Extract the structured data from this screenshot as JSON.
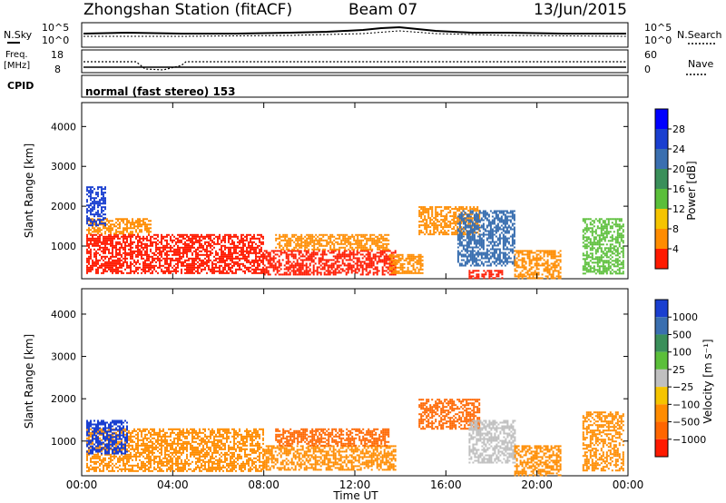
{
  "header": {
    "station": "Zhongshan Station (fitACF)",
    "beam": "Beam 07",
    "date": "13/Jun/2015"
  },
  "top_panel": {
    "left_label": "N.Sky",
    "left_ticks": [
      "10^5",
      "10^0"
    ],
    "right_ticks": [
      "10^5",
      "10^0"
    ],
    "right_label": "N.Search"
  },
  "freq_panel": {
    "left_label_1": "Freq.",
    "left_label_2": "[MHz]",
    "left_ticks": [
      "18",
      "8"
    ],
    "right_ticks": [
      "60",
      "0"
    ],
    "right_label": "Nave"
  },
  "cpid": {
    "label": "CPID",
    "value": "normal (fast stereo) 153"
  },
  "colors": {
    "red": "#ff1a00",
    "orange": "#ff8c00",
    "yellow_orange": "#f5c400",
    "green": "#5bbf3a",
    "teal": "#3a8f5a",
    "blue": "#1a3fd0",
    "gray": "#c0c0c0"
  },
  "chart_data": [
    {
      "type": "heatmap",
      "name": "power",
      "ylabel": "Slant Range [km]",
      "yticks": [
        "1000",
        "2000",
        "3000",
        "4000"
      ],
      "ylim": [
        180,
        4600
      ],
      "xlim": [
        0,
        24
      ],
      "xticks": [
        "00:00",
        "04:00",
        "08:00",
        "12:00",
        "16:00",
        "20:00",
        "00:00"
      ],
      "xlabel": "Time UT",
      "colorbar": {
        "label": "Power [dB]",
        "ticks": [
          "4",
          "8",
          "12",
          "16",
          "20",
          "24",
          "28"
        ],
        "colors": [
          "#0000ff",
          "#1a3fd0",
          "#3a6fb0",
          "#3a8f5a",
          "#5bbf3a",
          "#f5c400",
          "#ff8c00",
          "#ff1a00"
        ]
      },
      "regions": [
        {
          "t0": 0.2,
          "t1": 8.0,
          "r0": 300,
          "r1": 1300,
          "color": "#ff1a00"
        },
        {
          "t0": 0.2,
          "t1": 3.0,
          "r0": 1300,
          "r1": 1700,
          "color": "#ff8c00"
        },
        {
          "t0": 8.0,
          "t1": 13.8,
          "r0": 300,
          "r1": 900,
          "color": "#ff1a00"
        },
        {
          "t0": 8.5,
          "t1": 13.5,
          "r0": 900,
          "r1": 1300,
          "color": "#ff8c00"
        },
        {
          "t0": 13.5,
          "t1": 15.0,
          "r0": 300,
          "r1": 800,
          "color": "#ff8c00"
        },
        {
          "t0": 14.8,
          "t1": 17.5,
          "r0": 1300,
          "r1": 2000,
          "color": "#ff8c00"
        },
        {
          "t0": 16.5,
          "t1": 19.0,
          "r0": 500,
          "r1": 1900,
          "color": "#3a6fb0"
        },
        {
          "t0": 17.0,
          "t1": 18.5,
          "r0": 200,
          "r1": 400,
          "color": "#ff1a00"
        },
        {
          "t0": 19.0,
          "t1": 21.0,
          "r0": 200,
          "r1": 900,
          "color": "#ff8c00"
        },
        {
          "t0": 22.0,
          "t1": 23.8,
          "r0": 300,
          "r1": 1700,
          "color": "#5bbf3a"
        },
        {
          "t0": 0.2,
          "t1": 1.0,
          "r0": 1500,
          "r1": 2500,
          "color": "#1a3fd0"
        }
      ]
    },
    {
      "type": "heatmap",
      "name": "velocity",
      "ylabel": "Slant Range [km]",
      "yticks": [
        "1000",
        "2000",
        "3000",
        "4000"
      ],
      "ylim": [
        180,
        4600
      ],
      "xlim": [
        0,
        24
      ],
      "xticks": [
        "00:00",
        "04:00",
        "08:00",
        "12:00",
        "16:00",
        "20:00",
        "00:00"
      ],
      "xlabel": "Time UT",
      "colorbar": {
        "label": "Velocity [m s⁻¹]",
        "ticks": [
          "1000",
          "500",
          "100",
          "25",
          "−25",
          "−100",
          "−500",
          "−1000"
        ],
        "colors": [
          "#1a3fd0",
          "#3a6fb0",
          "#3a8f5a",
          "#5bbf3a",
          "#c0c0c0",
          "#f5c400",
          "#ff8c00",
          "#ff6600",
          "#ff1a00"
        ]
      },
      "regions": [
        {
          "t0": 0.2,
          "t1": 8.0,
          "r0": 300,
          "r1": 1300,
          "color": "#ff8c00"
        },
        {
          "t0": 0.2,
          "t1": 2.0,
          "r0": 700,
          "r1": 1500,
          "color": "#1a3fd0"
        },
        {
          "t0": 8.0,
          "t1": 13.8,
          "r0": 300,
          "r1": 900,
          "color": "#ff8c00"
        },
        {
          "t0": 8.5,
          "t1": 13.5,
          "r0": 900,
          "r1": 1300,
          "color": "#ff6600"
        },
        {
          "t0": 14.8,
          "t1": 17.5,
          "r0": 1300,
          "r1": 2000,
          "color": "#ff6600"
        },
        {
          "t0": 17.0,
          "t1": 19.0,
          "r0": 500,
          "r1": 1500,
          "color": "#c0c0c0"
        },
        {
          "t0": 19.0,
          "t1": 21.0,
          "r0": 200,
          "r1": 900,
          "color": "#ff8c00"
        },
        {
          "t0": 22.0,
          "t1": 23.8,
          "r0": 300,
          "r1": 1700,
          "color": "#ff8c00"
        }
      ]
    }
  ]
}
